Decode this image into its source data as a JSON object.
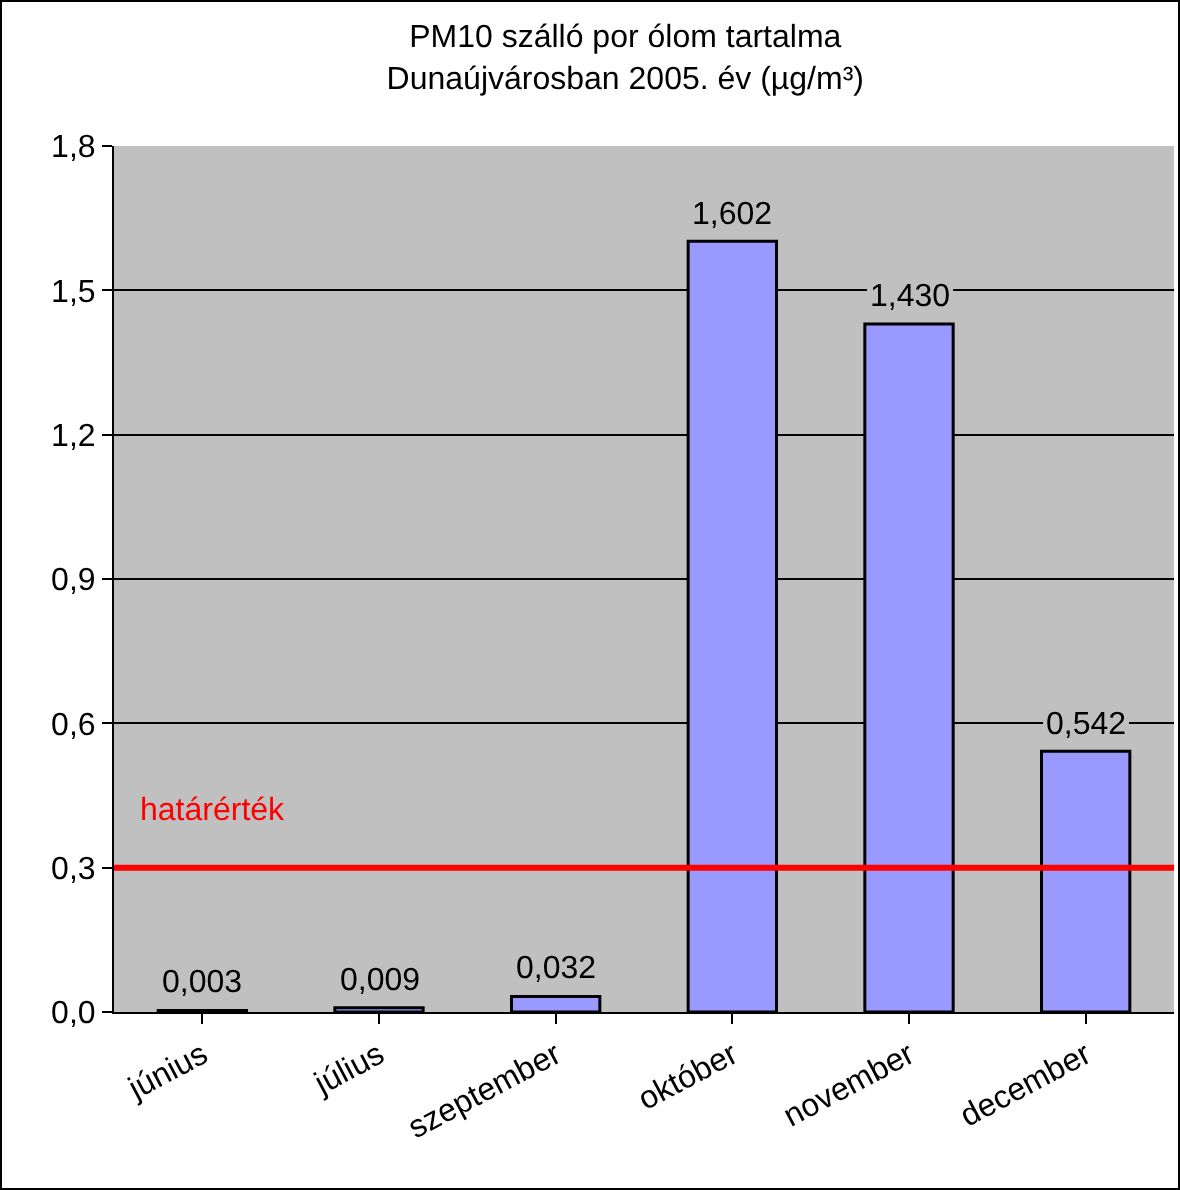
{
  "chart_data": {
    "type": "bar",
    "title": "PM10 szálló por ólom tartalma\nDunaújvárosban 2005. év (µg/m³)",
    "categories": [
      "június",
      "július",
      "szeptember",
      "október",
      "november",
      "december"
    ],
    "values": [
      0.003,
      0.009,
      0.032,
      1.602,
      1.43,
      0.542
    ],
    "value_labels": [
      "0,003",
      "0,009",
      "0,032",
      "1,602",
      "1,430",
      "0,542"
    ],
    "color": "#9999ff",
    "ylim": [
      0,
      1.8
    ],
    "yticks": [
      {
        "value": 0,
        "label": "0,0"
      },
      {
        "value": 0.3,
        "label": "0,3"
      },
      {
        "value": 0.6,
        "label": "0,6"
      },
      {
        "value": 0.9,
        "label": "0,9"
      },
      {
        "value": 1.2,
        "label": "1,2"
      },
      {
        "value": 1.5,
        "label": "1,5"
      },
      {
        "value": 1.8,
        "label": "1,8"
      }
    ],
    "grid": "y",
    "ref_lines": [
      {
        "axis": "y",
        "value": 0.3,
        "label": "határérték",
        "color": "#ff0000"
      }
    ]
  }
}
